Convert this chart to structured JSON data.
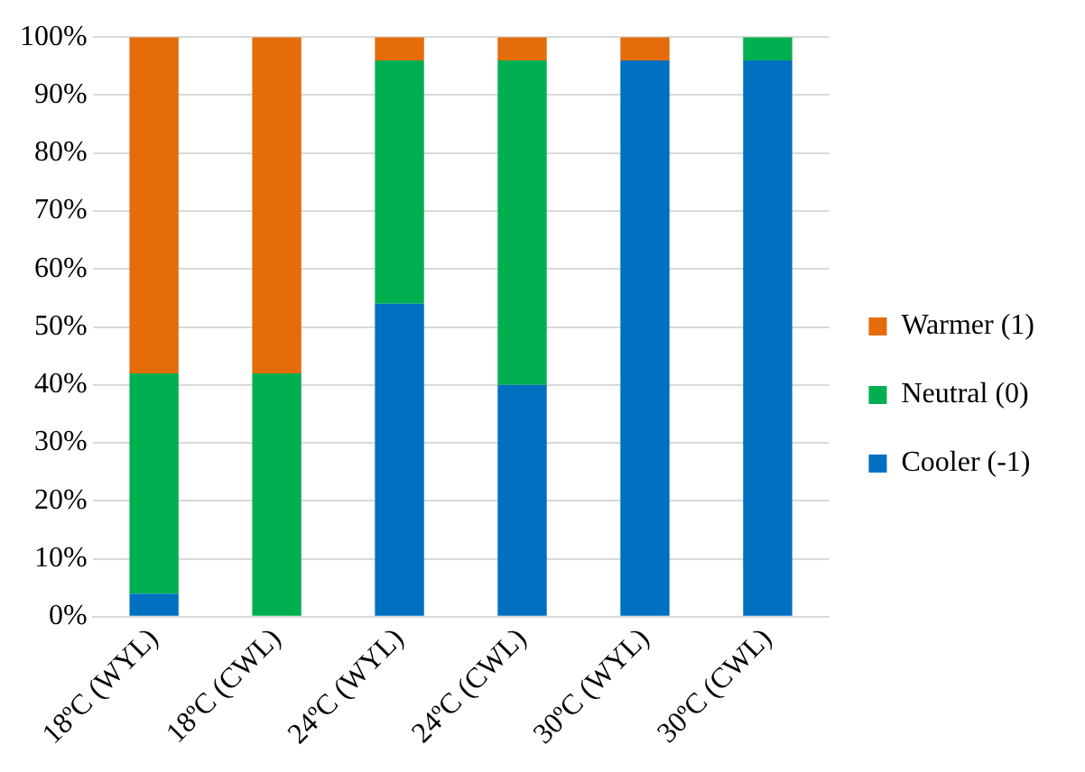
{
  "chart_data": {
    "type": "bar",
    "stacked": true,
    "categories": [
      "18ºC (WYL)",
      "18ºC (CWL)",
      "24ºC (WYL)",
      "24ºC (CWL)",
      "30ºC (WYL)",
      "30ºC (CWL)"
    ],
    "series": [
      {
        "name": "Cooler (-1)",
        "color": "#0070c0",
        "values": [
          4,
          0,
          54,
          40,
          96,
          96
        ]
      },
      {
        "name": "Neutral (0)",
        "color": "#00b050",
        "values": [
          38,
          42,
          42,
          56,
          0,
          4
        ]
      },
      {
        "name": "Warmer (1)",
        "color": "#e46c0a",
        "values": [
          58,
          58,
          4,
          4,
          4,
          0
        ]
      }
    ],
    "ylim": [
      0,
      100
    ],
    "yticks": [
      {
        "value": 0,
        "label": "0%"
      },
      {
        "value": 10,
        "label": "10%"
      },
      {
        "value": 20,
        "label": "20%"
      },
      {
        "value": 30,
        "label": "30%"
      },
      {
        "value": 40,
        "label": "40%"
      },
      {
        "value": 50,
        "label": "50%"
      },
      {
        "value": 60,
        "label": "60%"
      },
      {
        "value": 70,
        "label": "70%"
      },
      {
        "value": 80,
        "label": "80%"
      },
      {
        "value": 90,
        "label": "90%"
      },
      {
        "value": 100,
        "label": "100%"
      }
    ],
    "grid": "y",
    "legend": "right"
  }
}
